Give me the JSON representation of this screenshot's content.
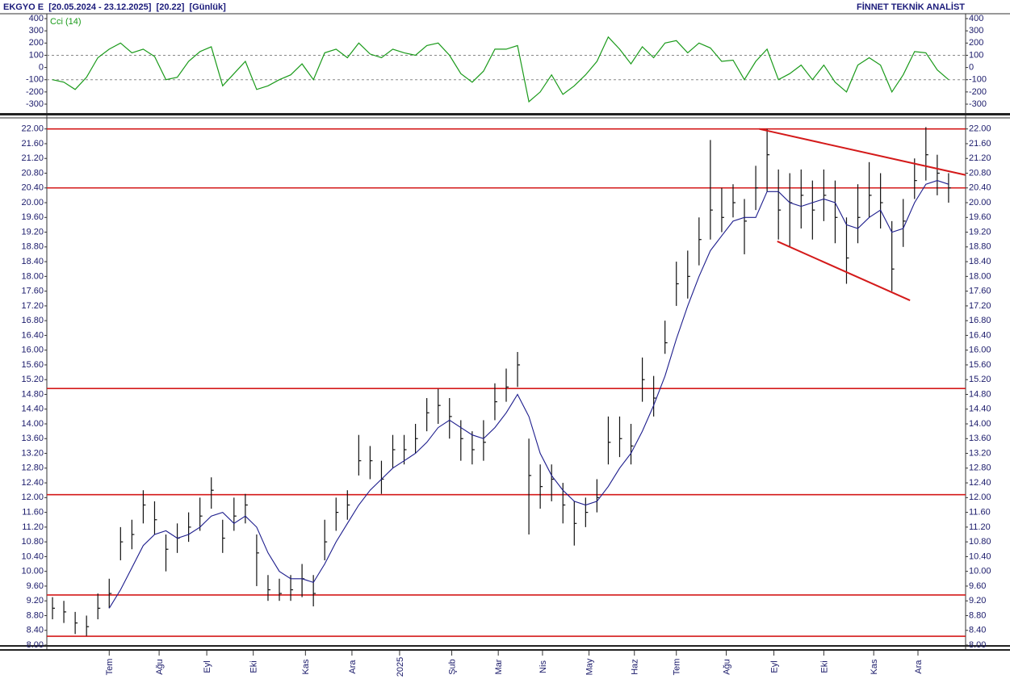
{
  "header": {
    "left": "EKGYO E  [20.05.2024 - 23.12.2025]  [20.22]  [Günlük]",
    "right": "FİNNET TEKNİK ANALİST"
  },
  "chart_data": [
    {
      "type": "line",
      "title": "Cci (14)",
      "color": "#1a9a1a",
      "values": [
        -100,
        -120,
        -180,
        -80,
        80,
        150,
        200,
        120,
        150,
        90,
        -100,
        -80,
        50,
        130,
        170,
        -150,
        -50,
        50,
        -180,
        -150,
        -100,
        -60,
        30,
        -100,
        120,
        150,
        80,
        200,
        110,
        80,
        150,
        120,
        100,
        180,
        200,
        100,
        -50,
        -120,
        -30,
        150,
        150,
        180,
        -280,
        -200,
        -60,
        -220,
        -150,
        -60,
        50,
        250,
        150,
        30,
        170,
        80,
        200,
        220,
        120,
        200,
        160,
        50,
        60,
        -100,
        50,
        150,
        -100,
        -50,
        20,
        -100,
        20,
        -120,
        -200,
        20,
        80,
        20,
        -200,
        -60,
        130,
        120,
        -20,
        -100
      ],
      "xlim": [
        -0.5,
        80.5
      ],
      "ylim": [
        -370,
        440
      ],
      "yticks": [
        400,
        300,
        200,
        100,
        0,
        -100,
        -200,
        -300
      ],
      "dashed_levels": [
        100,
        -100
      ]
    },
    {
      "type": "ohlc",
      "color": "#111111",
      "ma_color": "#1c1c8c",
      "line_color": "#d41a1a",
      "high": [
        9.3,
        9.2,
        8.9,
        8.8,
        9.4,
        9.8,
        11.2,
        11.4,
        12.2,
        11.9,
        11.0,
        11.3,
        11.6,
        12.0,
        12.55,
        11.4,
        12.0,
        12.1,
        11.0,
        9.9,
        9.8,
        9.9,
        10.2,
        9.9,
        11.4,
        12.0,
        12.2,
        13.7,
        13.4,
        13.0,
        13.7,
        13.7,
        14.0,
        14.7,
        14.95,
        14.7,
        14.1,
        13.8,
        14.1,
        15.1,
        15.5,
        15.95,
        13.6,
        12.9,
        12.9,
        12.4,
        11.9,
        12.0,
        12.5,
        14.2,
        14.2,
        14.0,
        15.8,
        15.3,
        16.8,
        18.4,
        18.7,
        19.6,
        21.7,
        20.4,
        20.5,
        20.1,
        21.0,
        22.0,
        20.9,
        20.8,
        20.9,
        20.6,
        20.9,
        20.6,
        19.6,
        20.5,
        21.1,
        20.8,
        19.5,
        20.1,
        21.2,
        22.05,
        21.3,
        20.8
      ],
      "low": [
        8.7,
        8.6,
        8.3,
        8.25,
        8.7,
        9.0,
        10.3,
        10.6,
        11.3,
        11.0,
        10.0,
        10.5,
        10.8,
        11.1,
        11.7,
        10.5,
        11.1,
        11.3,
        9.6,
        9.2,
        9.2,
        9.2,
        9.3,
        9.05,
        10.3,
        11.1,
        11.4,
        12.6,
        12.5,
        12.1,
        12.8,
        12.9,
        13.2,
        13.8,
        14.0,
        13.6,
        13.0,
        12.9,
        13.0,
        14.1,
        14.6,
        15.0,
        11.0,
        11.7,
        11.9,
        11.3,
        10.7,
        11.2,
        11.6,
        12.9,
        13.1,
        12.9,
        14.6,
        14.2,
        15.9,
        17.2,
        17.4,
        18.3,
        19.0,
        19.2,
        19.6,
        18.6,
        19.8,
        20.3,
        19.0,
        18.8,
        19.3,
        19.0,
        19.5,
        18.9,
        17.8,
        18.9,
        19.6,
        19.3,
        17.6,
        18.8,
        20.1,
        20.6,
        20.2,
        20.0
      ],
      "close": [
        9.0,
        8.9,
        8.6,
        8.5,
        9.0,
        9.4,
        10.8,
        11.0,
        11.8,
        11.4,
        10.6,
        10.9,
        11.2,
        11.5,
        12.2,
        10.9,
        11.5,
        11.8,
        10.5,
        9.5,
        9.4,
        9.5,
        9.8,
        9.4,
        10.8,
        11.6,
        11.8,
        13.0,
        13.0,
        12.5,
        13.3,
        13.3,
        13.6,
        14.3,
        14.5,
        14.2,
        13.6,
        13.3,
        13.5,
        14.6,
        15.0,
        15.6,
        12.6,
        12.3,
        12.5,
        11.8,
        11.3,
        11.6,
        12.0,
        13.5,
        13.6,
        13.4,
        15.2,
        14.7,
        16.2,
        17.8,
        18.0,
        19.0,
        19.8,
        19.6,
        20.0,
        19.5,
        20.4,
        21.3,
        19.8,
        20.0,
        20.2,
        19.8,
        20.2,
        19.6,
        18.5,
        19.6,
        20.2,
        20.0,
        18.2,
        19.5,
        20.6,
        21.3,
        20.8,
        20.4
      ],
      "ma": [
        null,
        null,
        null,
        null,
        null,
        9.0,
        9.5,
        10.1,
        10.7,
        11.0,
        11.1,
        10.9,
        11.0,
        11.2,
        11.5,
        11.6,
        11.3,
        11.5,
        11.2,
        10.5,
        10.0,
        9.8,
        9.8,
        9.7,
        10.2,
        10.8,
        11.3,
        11.8,
        12.2,
        12.5,
        12.8,
        13.0,
        13.2,
        13.5,
        13.9,
        14.1,
        13.9,
        13.7,
        13.6,
        13.9,
        14.3,
        14.8,
        14.2,
        13.2,
        12.6,
        12.2,
        11.9,
        11.8,
        11.9,
        12.3,
        12.8,
        13.2,
        13.8,
        14.5,
        15.3,
        16.3,
        17.2,
        18.0,
        18.7,
        19.1,
        19.5,
        19.6,
        19.6,
        20.3,
        20.3,
        20.0,
        19.9,
        20.0,
        20.1,
        20.0,
        19.4,
        19.3,
        19.6,
        19.8,
        19.2,
        19.3,
        20.0,
        20.5,
        20.6,
        20.5
      ],
      "hlines": [
        22.0,
        20.4,
        14.96,
        12.08,
        9.36,
        8.24
      ],
      "trendlines": [
        {
          "x": [
            62.3,
            80.5
          ],
          "y": [
            22.0,
            20.75
          ]
        },
        {
          "x": [
            63.9,
            75.6
          ],
          "y": [
            18.95,
            17.35
          ]
        }
      ],
      "xlim": [
        -0.5,
        80.5
      ],
      "ylim": [
        8.0,
        22.3
      ],
      "xticks": [
        {
          "value": 5.0,
          "label": "Tem"
        },
        {
          "value": 9.4,
          "label": "Ağu"
        },
        {
          "value": 13.6,
          "label": "Eyl"
        },
        {
          "value": 17.7,
          "label": "Eki"
        },
        {
          "value": 22.3,
          "label": "Kas"
        },
        {
          "value": 26.4,
          "label": "Ara"
        },
        {
          "value": 30.6,
          "label": "2025"
        },
        {
          "value": 35.2,
          "label": "Şub"
        },
        {
          "value": 39.3,
          "label": "Mar"
        },
        {
          "value": 43.2,
          "label": "Nis"
        },
        {
          "value": 47.3,
          "label": "May"
        },
        {
          "value": 51.3,
          "label": "Haz"
        },
        {
          "value": 55.0,
          "label": "Tem"
        },
        {
          "value": 59.4,
          "label": "Ağu"
        },
        {
          "value": 63.6,
          "label": "Eyl"
        },
        {
          "value": 68.0,
          "label": "Eki"
        },
        {
          "value": 72.4,
          "label": "Kas"
        },
        {
          "value": 76.3,
          "label": "Ara"
        }
      ],
      "yticks": [
        {
          "value": 8.0,
          "label": "8.00"
        },
        {
          "value": 8.4,
          "label": "8.40"
        },
        {
          "value": 8.8,
          "label": "8.80"
        },
        {
          "value": 9.2,
          "label": "9.20"
        },
        {
          "value": 9.6,
          "label": "9.60"
        },
        {
          "value": 10.0,
          "label": "10.00"
        },
        {
          "value": 10.4,
          "label": "10.40"
        },
        {
          "value": 10.8,
          "label": "10.80"
        },
        {
          "value": 11.2,
          "label": "11.20"
        },
        {
          "value": 11.6,
          "label": "11.60"
        },
        {
          "value": 12.0,
          "label": "12.00"
        },
        {
          "value": 12.4,
          "label": "12.40"
        },
        {
          "value": 12.8,
          "label": "12.80"
        },
        {
          "value": 13.2,
          "label": "13.20"
        },
        {
          "value": 13.6,
          "label": "13.60"
        },
        {
          "value": 14.0,
          "label": "14.00"
        },
        {
          "value": 14.4,
          "label": "14.40"
        },
        {
          "value": 14.8,
          "label": "14.80"
        },
        {
          "value": 15.2,
          "label": "15.20"
        },
        {
          "value": 15.6,
          "label": "15.60"
        },
        {
          "value": 16.0,
          "label": "16.00"
        },
        {
          "value": 16.4,
          "label": "16.40"
        },
        {
          "value": 16.8,
          "label": "16.80"
        },
        {
          "value": 17.2,
          "label": "17.20"
        },
        {
          "value": 17.6,
          "label": "17.60"
        },
        {
          "value": 18.0,
          "label": "18.00"
        },
        {
          "value": 18.4,
          "label": "18.40"
        },
        {
          "value": 18.8,
          "label": "18.80"
        },
        {
          "value": 19.2,
          "label": "19.20"
        },
        {
          "value": 19.6,
          "label": "19.60"
        },
        {
          "value": 20.0,
          "label": "20.00"
        },
        {
          "value": 20.4,
          "label": "20.40"
        },
        {
          "value": 20.8,
          "label": "20.80"
        },
        {
          "value": 21.2,
          "label": "21.20"
        },
        {
          "value": 21.6,
          "label": "21.60"
        },
        {
          "value": 22.0,
          "label": "22.00"
        }
      ]
    }
  ]
}
